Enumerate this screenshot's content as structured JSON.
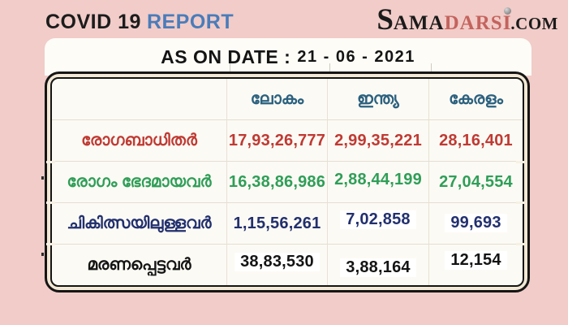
{
  "colors": {
    "page_background": "#f1ccc8",
    "title_accent_blue": "#4a7cba",
    "logo_accent_rose": "#c4635d",
    "table_header_teal": "#2b617f",
    "infected_red": "#bf3a33",
    "recovered_green": "#2f9e58",
    "active_navy": "#22306e",
    "deceased_black": "#141414",
    "table_frame_cream": "#f2e8d5"
  },
  "header": {
    "title": "COVID 19",
    "title_accent": "REPORT"
  },
  "logo": {
    "initial": "S",
    "black_part": "AMA",
    "accent_part": "DARS",
    "accent_i": "I",
    "suffix": ".COM"
  },
  "banner": {
    "label": "AS ON DATE :",
    "date": "21 - 06 - 2021"
  },
  "table": {
    "column_headers": [
      "ലോകം",
      "ഇന്ത്യ",
      "കേരളം"
    ],
    "rows": [
      {
        "label": "രോഗബാധിതർ",
        "values": [
          "17,93,26,777",
          "2,99,35,221",
          "28,16,401"
        ],
        "color": "#bf3a33"
      },
      {
        "label": "രോഗം ഭേദമായവർ",
        "values": [
          "16,38,86,986",
          "2,88,44,199",
          "27,04,554"
        ],
        "color": "#2f9e58"
      },
      {
        "label": "ചികിത്സയിലുള്ളവർ",
        "values": [
          "1,15,56,261",
          "7,02,858",
          "99,693"
        ],
        "color": "#22306e"
      },
      {
        "label": "മരണപ്പെട്ടവർ",
        "values": [
          "38,83,530",
          "3,88,164",
          "12,154"
        ],
        "color": "#141414"
      }
    ]
  },
  "chart_data": {
    "type": "table",
    "title": "COVID 19 REPORT",
    "as_on_date": "21 - 06 - 2021",
    "columns": [
      "ലോകം",
      "ഇന്ത്യ",
      "കേരളം"
    ],
    "rows": [
      {
        "label": "രോഗബാധിതർ",
        "values": [
          179326777,
          29935221,
          2816401
        ]
      },
      {
        "label": "രോഗം ഭേദമായവർ",
        "values": [
          163886986,
          28844199,
          2704554
        ]
      },
      {
        "label": "ചികിത്സയിലുള്ളവർ",
        "values": [
          11556261,
          702858,
          99693
        ]
      },
      {
        "label": "മരണപ്പെട്ടവർ",
        "values": [
          3883530,
          388164,
          12154
        ]
      }
    ]
  }
}
